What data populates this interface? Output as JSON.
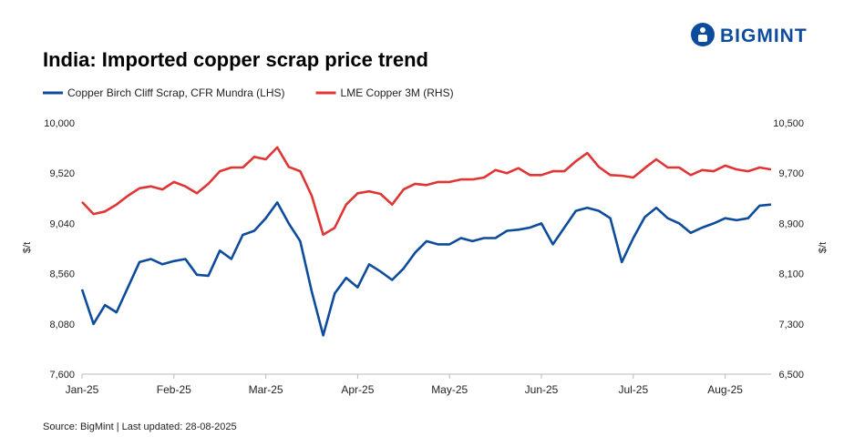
{
  "logo": "BIGMINT",
  "chart_data": {
    "type": "line",
    "title": "India: Imported copper scrap price trend",
    "y_label": "$/t",
    "y2_label": "$/t",
    "source": "Source: BigMint | Last updated: 28-08-2025",
    "categories": [
      "Jan-25",
      null,
      null,
      null,
      null,
      null,
      null,
      null,
      "Feb-25",
      null,
      null,
      null,
      null,
      null,
      null,
      null,
      "Mar-25",
      null,
      null,
      null,
      null,
      null,
      null,
      null,
      "Apr-25",
      null,
      null,
      null,
      null,
      null,
      null,
      null,
      "May-25",
      null,
      null,
      null,
      null,
      null,
      null,
      null,
      "Jun-25",
      null,
      null,
      null,
      null,
      null,
      null,
      null,
      "Jul-25",
      null,
      null,
      null,
      null,
      null,
      null,
      null,
      "Aug-25",
      null,
      null,
      null,
      null
    ],
    "ylim": [
      7600,
      10000
    ],
    "yticks": [
      {
        "value": 7600,
        "label": "7,600"
      },
      {
        "value": 8080,
        "label": "8,080"
      },
      {
        "value": 8560,
        "label": "8,560"
      },
      {
        "value": 9040,
        "label": "9,040"
      },
      {
        "value": 9520,
        "label": "9,520"
      },
      {
        "value": 10000,
        "label": "10,000"
      }
    ],
    "y2lim": [
      6500,
      10500
    ],
    "y2ticks": [
      {
        "value": 6500,
        "label": "6,500"
      },
      {
        "value": 7300,
        "label": "7,300"
      },
      {
        "value": 8100,
        "label": "8,100"
      },
      {
        "value": 8900,
        "label": "8,900"
      },
      {
        "value": 9700,
        "label": "9,700"
      },
      {
        "value": 10500,
        "label": "10,500"
      }
    ],
    "legend": "top-left",
    "series": [
      {
        "name": "Copper Birch Cliff Scrap, CFR Mundra (LHS)",
        "color": "#0d4c9c",
        "axis": "y",
        "values": [
          8410,
          8080,
          8260,
          8190,
          8430,
          8670,
          8700,
          8650,
          8680,
          8700,
          8550,
          8540,
          8780,
          8700,
          8930,
          8970,
          9090,
          9240,
          9040,
          8870,
          8390,
          7970,
          8370,
          8520,
          8430,
          8650,
          8580,
          8500,
          8610,
          8760,
          8870,
          8840,
          8840,
          8900,
          8870,
          8900,
          8900,
          8970,
          8980,
          9000,
          9040,
          8840,
          9000,
          9160,
          9190,
          9160,
          9090,
          8670,
          8900,
          9100,
          9190,
          9090,
          9040,
          8950,
          9000,
          9040,
          9090,
          9070,
          9090,
          9210,
          9220
        ]
      },
      {
        "name": "LME Copper 3M (RHS)",
        "color": "#e03535",
        "axis": "y2",
        "values": [
          9240,
          9050,
          9090,
          9200,
          9340,
          9460,
          9490,
          9440,
          9560,
          9490,
          9380,
          9530,
          9730,
          9790,
          9790,
          9960,
          9920,
          10110,
          9800,
          9730,
          9340,
          8720,
          8830,
          9200,
          9380,
          9410,
          9370,
          9200,
          9440,
          9530,
          9510,
          9560,
          9560,
          9600,
          9600,
          9630,
          9750,
          9700,
          9780,
          9670,
          9670,
          9730,
          9730,
          9890,
          10020,
          9800,
          9670,
          9660,
          9630,
          9780,
          9920,
          9790,
          9790,
          9670,
          9750,
          9730,
          9820,
          9760,
          9730,
          9790,
          9760
        ]
      }
    ]
  }
}
